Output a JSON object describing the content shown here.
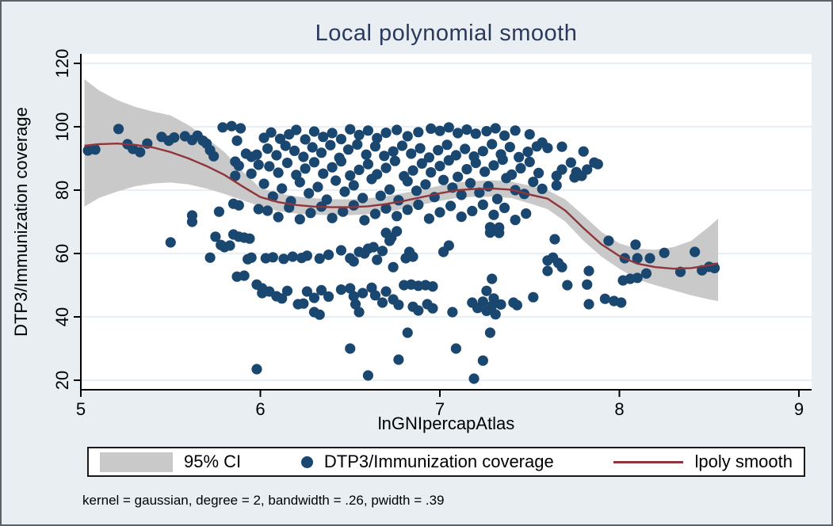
{
  "figure": {
    "background": "#e8eef1",
    "border_color": "#5b6166"
  },
  "chart_data": {
    "type": "scatter",
    "title": "Local polynomial smooth",
    "xlabel": "lnGNIpercapAtlas",
    "ylabel": "DTP3/Immunization coverage",
    "note": "kernel = gaussian, degree = 2, bandwidth = .26, pwidth = .39",
    "x_ticks": [
      5,
      6,
      7,
      8,
      9
    ],
    "y_ticks": [
      20,
      40,
      60,
      80,
      100,
      120
    ],
    "xlim": [
      5.0,
      9.07
    ],
    "ylim": [
      17,
      123
    ],
    "grid": "horizontal",
    "colors": {
      "scatter": "#1a476f",
      "line": "#90353b",
      "ci_band": "#c9c9c9",
      "gridline": "#dfeaf2",
      "axis": "#000000",
      "plot_background": "#ffffff"
    },
    "legend": {
      "position": "bottom",
      "items": [
        {
          "label": "95% CI",
          "type": "area",
          "color": "#c9c9c9"
        },
        {
          "label": "DTP3/Immunization coverage",
          "type": "marker",
          "color": "#1a476f"
        },
        {
          "label": "lpoly smooth",
          "type": "line",
          "color": "#90353b"
        }
      ]
    },
    "band": {
      "x": [
        5.02,
        5.1,
        5.2,
        5.3,
        5.4,
        5.5,
        5.6,
        5.7,
        5.8,
        5.9,
        6.0,
        6.1,
        6.2,
        6.3,
        6.4,
        6.5,
        6.6,
        6.7,
        6.8,
        6.9,
        7.0,
        7.1,
        7.2,
        7.3,
        7.4,
        7.5,
        7.6,
        7.7,
        7.8,
        7.9,
        8.0,
        8.1,
        8.2,
        8.3,
        8.4,
        8.5,
        8.55
      ],
      "upper": [
        115,
        111.5,
        108.5,
        106.3,
        104.8,
        103.6,
        100.5,
        96.5,
        92.0,
        86.0,
        80.6,
        79.0,
        78.0,
        77.4,
        77.1,
        77.1,
        77.4,
        78.1,
        79.1,
        80.2,
        81.4,
        82.4,
        82.9,
        83.1,
        82.7,
        81.4,
        80.0,
        77.0,
        72.0,
        66.8,
        63.2,
        61.5,
        61.2,
        62.0,
        64.0,
        68.5,
        71.0
      ],
      "lower": [
        74.8,
        77.5,
        79.5,
        81.2,
        82.1,
        82.4,
        81.8,
        80.5,
        78.8,
        76.8,
        74.9,
        73.4,
        72.6,
        72.2,
        72.1,
        72.1,
        72.4,
        73.1,
        74.1,
        75.4,
        76.6,
        77.6,
        77.9,
        77.9,
        77.5,
        75.8,
        74.0,
        70.0,
        64.0,
        59.0,
        55.2,
        51.8,
        50.0,
        48.4,
        46.8,
        45.5,
        45.0
      ]
    },
    "line": {
      "x": [
        5.02,
        5.1,
        5.2,
        5.3,
        5.4,
        5.5,
        5.6,
        5.7,
        5.8,
        5.9,
        6.0,
        6.1,
        6.2,
        6.3,
        6.4,
        6.5,
        6.6,
        6.7,
        6.8,
        6.9,
        7.0,
        7.1,
        7.2,
        7.3,
        7.4,
        7.5,
        7.6,
        7.7,
        7.8,
        7.9,
        8.0,
        8.1,
        8.2,
        8.3,
        8.4,
        8.5,
        8.55
      ],
      "y": [
        94.0,
        94.5,
        94.7,
        94.3,
        93.5,
        92.0,
        90.0,
        87.6,
        84.8,
        81.2,
        77.8,
        76.2,
        75.3,
        74.8,
        74.6,
        74.6,
        74.9,
        75.6,
        76.6,
        77.8,
        79.0,
        80.0,
        80.4,
        80.5,
        80.1,
        78.6,
        77.3,
        73.5,
        68.0,
        62.9,
        59.2,
        56.8,
        55.7,
        55.2,
        55.4,
        56.3,
        56.9
      ]
    },
    "points": [
      [
        5.21,
        99.3
      ],
      [
        5.45,
        96.8
      ],
      [
        5.49,
        95.6
      ],
      [
        5.52,
        96.6
      ],
      [
        5.58,
        97.0
      ],
      [
        5.62,
        95.8
      ],
      [
        5.65,
        97.2
      ],
      [
        5.68,
        95.6
      ],
      [
        5.79,
        99.8
      ],
      [
        5.84,
        100.2
      ],
      [
        5.89,
        99.5
      ],
      [
        6.02,
        96.5
      ],
      [
        6.06,
        98.2
      ],
      [
        6.11,
        96.2
      ],
      [
        6.16,
        97.6
      ],
      [
        6.2,
        99.0
      ],
      [
        6.25,
        96.0
      ],
      [
        6.3,
        98.5
      ],
      [
        6.35,
        96.8
      ],
      [
        6.4,
        98.0
      ],
      [
        6.45,
        96.1
      ],
      [
        6.5,
        99.2
      ],
      [
        6.55,
        97.4
      ],
      [
        6.6,
        98.8
      ],
      [
        6.65,
        96.4
      ],
      [
        6.7,
        98.1
      ],
      [
        6.76,
        99.0
      ],
      [
        6.82,
        97.0
      ],
      [
        6.88,
        98.3
      ],
      [
        6.95,
        99.4
      ],
      [
        7.0,
        98.7
      ],
      [
        7.05,
        99.8
      ],
      [
        7.1,
        98.0
      ],
      [
        7.15,
        99.1
      ],
      [
        7.2,
        97.8
      ],
      [
        7.26,
        98.6
      ],
      [
        7.31,
        99.5
      ],
      [
        7.36,
        97.2
      ],
      [
        7.42,
        98.8
      ],
      [
        7.5,
        97.6
      ],
      [
        7.57,
        95.0
      ],
      [
        5.04,
        92.5
      ],
      [
        5.08,
        92.8
      ],
      [
        5.26,
        94.5
      ],
      [
        5.29,
        93.0
      ],
      [
        5.33,
        92.0
      ],
      [
        5.37,
        94.7
      ],
      [
        5.7,
        94.7
      ],
      [
        5.72,
        92.6
      ],
      [
        5.74,
        90.7
      ],
      [
        5.87,
        95.6
      ],
      [
        5.92,
        91.5
      ],
      [
        5.95,
        90.5
      ],
      [
        5.98,
        91.2
      ],
      [
        6.04,
        93.1
      ],
      [
        6.09,
        91.0
      ],
      [
        6.14,
        94.0
      ],
      [
        6.19,
        92.4
      ],
      [
        6.24,
        90.5
      ],
      [
        6.29,
        93.5
      ],
      [
        6.34,
        91.8
      ],
      [
        6.39,
        94.2
      ],
      [
        6.44,
        90.2
      ],
      [
        6.49,
        92.8
      ],
      [
        6.54,
        94.4
      ],
      [
        6.59,
        91.2
      ],
      [
        6.64,
        93.8
      ],
      [
        6.69,
        90.8
      ],
      [
        6.74,
        92.2
      ],
      [
        6.79,
        94.0
      ],
      [
        6.84,
        91.5
      ],
      [
        6.89,
        93.2
      ],
      [
        6.94,
        90.3
      ],
      [
        6.99,
        92.6
      ],
      [
        7.04,
        94.3
      ],
      [
        7.09,
        91.0
      ],
      [
        7.14,
        93.0
      ],
      [
        7.19,
        90.6
      ],
      [
        7.24,
        92.3
      ],
      [
        7.29,
        94.5
      ],
      [
        7.34,
        91.3
      ],
      [
        7.39,
        93.6
      ],
      [
        7.44,
        90.4
      ],
      [
        7.49,
        92.1
      ],
      [
        7.54,
        93.8
      ],
      [
        7.6,
        93.3
      ],
      [
        7.68,
        93.7
      ],
      [
        7.8,
        92.2
      ],
      [
        5.86,
        89.0
      ],
      [
        5.88,
        87.7
      ],
      [
        5.86,
        84.5
      ],
      [
        5.95,
        85.2
      ],
      [
        5.99,
        88.0
      ],
      [
        6.05,
        87.5
      ],
      [
        6.1,
        85.5
      ],
      [
        6.15,
        88.6
      ],
      [
        6.2,
        84.8
      ],
      [
        6.25,
        86.8
      ],
      [
        6.3,
        88.8
      ],
      [
        6.35,
        85.2
      ],
      [
        6.4,
        87.2
      ],
      [
        6.45,
        89.1
      ],
      [
        6.5,
        84.6
      ],
      [
        6.55,
        86.4
      ],
      [
        6.6,
        88.2
      ],
      [
        6.65,
        85.0
      ],
      [
        6.7,
        87.0
      ],
      [
        6.75,
        89.2
      ],
      [
        6.8,
        84.4
      ],
      [
        6.85,
        86.2
      ],
      [
        6.9,
        88.4
      ],
      [
        6.95,
        85.6
      ],
      [
        7.0,
        87.6
      ],
      [
        7.05,
        89.4
      ],
      [
        7.1,
        84.2
      ],
      [
        7.15,
        86.6
      ],
      [
        7.2,
        88.6
      ],
      [
        7.25,
        85.8
      ],
      [
        7.3,
        87.8
      ],
      [
        7.35,
        89.6
      ],
      [
        7.4,
        84.9
      ],
      [
        7.45,
        86.9
      ],
      [
        7.5,
        88.9
      ],
      [
        7.55,
        85.4
      ],
      [
        7.73,
        88.7
      ],
      [
        7.86,
        88.7
      ],
      [
        7.88,
        88.2
      ],
      [
        7.68,
        86.5
      ],
      [
        7.76,
        85.7
      ],
      [
        7.82,
        86.5
      ],
      [
        7.79,
        84.5
      ],
      [
        7.75,
        84.0
      ],
      [
        7.65,
        84.5
      ],
      [
        7.65,
        81.5
      ],
      [
        6.02,
        82.0
      ],
      [
        6.07,
        78.0
      ],
      [
        6.12,
        80.5
      ],
      [
        6.17,
        76.5
      ],
      [
        6.22,
        82.5
      ],
      [
        6.27,
        79.0
      ],
      [
        6.32,
        81.0
      ],
      [
        6.37,
        77.0
      ],
      [
        6.42,
        83.0
      ],
      [
        6.47,
        79.5
      ],
      [
        6.52,
        81.5
      ],
      [
        6.57,
        77.5
      ],
      [
        6.62,
        83.5
      ],
      [
        6.67,
        78.2
      ],
      [
        6.72,
        80.2
      ],
      [
        6.77,
        76.8
      ],
      [
        6.82,
        82.8
      ],
      [
        6.87,
        79.8
      ],
      [
        6.92,
        81.8
      ],
      [
        6.97,
        77.8
      ],
      [
        7.02,
        83.2
      ],
      [
        7.07,
        80.8
      ],
      [
        7.12,
        78.5
      ],
      [
        7.17,
        82.2
      ],
      [
        7.22,
        79.2
      ],
      [
        7.27,
        81.2
      ],
      [
        7.32,
        77.2
      ],
      [
        7.37,
        83.8
      ],
      [
        7.42,
        80.0
      ],
      [
        7.47,
        78.8
      ],
      [
        7.52,
        82.6
      ],
      [
        7.57,
        80.4
      ],
      [
        5.62,
        72.0
      ],
      [
        5.77,
        73.2
      ],
      [
        5.85,
        75.7
      ],
      [
        5.88,
        75.2
      ],
      [
        5.99,
        74.0
      ],
      [
        6.04,
        73.5
      ],
      [
        6.1,
        71.5
      ],
      [
        6.16,
        74.5
      ],
      [
        6.22,
        70.8
      ],
      [
        6.28,
        72.8
      ],
      [
        6.34,
        74.8
      ],
      [
        6.4,
        71.2
      ],
      [
        6.46,
        73.2
      ],
      [
        6.52,
        75.2
      ],
      [
        6.58,
        70.5
      ],
      [
        6.64,
        72.5
      ],
      [
        6.7,
        74.2
      ],
      [
        6.76,
        71.8
      ],
      [
        6.82,
        73.8
      ],
      [
        6.88,
        75.4
      ],
      [
        6.94,
        71.0
      ],
      [
        7.0,
        73.0
      ],
      [
        7.06,
        75.0
      ],
      [
        7.12,
        71.6
      ],
      [
        7.18,
        73.4
      ],
      [
        7.24,
        75.4
      ],
      [
        7.3,
        72.2
      ],
      [
        7.36,
        74.4
      ],
      [
        7.42,
        70.6
      ],
      [
        7.48,
        72.6
      ],
      [
        7.28,
        68.3
      ],
      [
        7.33,
        68.2
      ],
      [
        7.28,
        66.6
      ],
      [
        7.33,
        66.5
      ],
      [
        7.64,
        64.5
      ],
      [
        7.05,
        62.5
      ],
      [
        6.7,
        66.5
      ],
      [
        6.73,
        65.0
      ],
      [
        6.76,
        67.0
      ],
      [
        6.72,
        64.0
      ],
      [
        5.85,
        66.0
      ],
      [
        5.88,
        65.3
      ],
      [
        5.91,
        65.0
      ],
      [
        5.94,
        64.7
      ],
      [
        5.75,
        65.3
      ],
      [
        5.5,
        63.5
      ],
      [
        5.62,
        70.0
      ],
      [
        5.72,
        58.7
      ],
      [
        5.78,
        62.7
      ],
      [
        5.8,
        62.0
      ],
      [
        5.83,
        62.5
      ],
      [
        5.93,
        58.2
      ],
      [
        5.95,
        58.7
      ],
      [
        6.03,
        58.5
      ],
      [
        6.07,
        58.8
      ],
      [
        6.13,
        58.3
      ],
      [
        6.18,
        59.0
      ],
      [
        6.23,
        58.6
      ],
      [
        6.26,
        59.3
      ],
      [
        6.33,
        58.4
      ],
      [
        6.38,
        59.6
      ],
      [
        6.45,
        61.0
      ],
      [
        6.5,
        58.5
      ],
      [
        6.52,
        57.5
      ],
      [
        6.55,
        60.5
      ],
      [
        6.58,
        60.0
      ],
      [
        6.6,
        61.5
      ],
      [
        6.63,
        62.0
      ],
      [
        6.65,
        58.0
      ],
      [
        6.68,
        60.8
      ],
      [
        6.74,
        55.7
      ],
      [
        6.81,
        58.5
      ],
      [
        6.83,
        60.5
      ],
      [
        6.85,
        59.0
      ],
      [
        7.02,
        60.5
      ],
      [
        7.6,
        57.8
      ],
      [
        7.63,
        58.7
      ],
      [
        7.66,
        57.0
      ],
      [
        7.68,
        55.7
      ],
      [
        7.6,
        54.5
      ],
      [
        7.83,
        54.5
      ],
      [
        7.94,
        64.0
      ],
      [
        8.09,
        62.8
      ],
      [
        8.25,
        60.2
      ],
      [
        8.42,
        60.5
      ],
      [
        8.03,
        58.5
      ],
      [
        8.1,
        58.5
      ],
      [
        8.17,
        58.5
      ],
      [
        8.34,
        54.2
      ],
      [
        8.46,
        54.7
      ],
      [
        8.5,
        55.8
      ],
      [
        8.53,
        55.4
      ],
      [
        8.02,
        51.5
      ],
      [
        8.06,
        52.0
      ],
      [
        8.1,
        52.3
      ],
      [
        8.15,
        53.7
      ],
      [
        5.87,
        52.7
      ],
      [
        5.91,
        53.0
      ],
      [
        5.98,
        50.2
      ],
      [
        6.01,
        49.0
      ],
      [
        6.01,
        47.5
      ],
      [
        6.05,
        48.0
      ],
      [
        6.09,
        46.5
      ],
      [
        6.12,
        45.8
      ],
      [
        6.15,
        48.2
      ],
      [
        6.26,
        48.0
      ],
      [
        6.3,
        46.0
      ],
      [
        6.34,
        48.4
      ],
      [
        6.38,
        46.4
      ],
      [
        6.45,
        48.6
      ],
      [
        6.21,
        44.0
      ],
      [
        6.24,
        44.2
      ],
      [
        6.3,
        41.5
      ],
      [
        6.33,
        40.7
      ],
      [
        6.5,
        49.0
      ],
      [
        6.52,
        46.5
      ],
      [
        6.53,
        44.0
      ],
      [
        6.55,
        41.5
      ],
      [
        6.57,
        47.5
      ],
      [
        6.62,
        49.2
      ],
      [
        6.64,
        46.8
      ],
      [
        6.68,
        44.5
      ],
      [
        6.7,
        48.0
      ],
      [
        6.74,
        45.5
      ],
      [
        6.77,
        43.8
      ],
      [
        6.8,
        50.0
      ],
      [
        6.84,
        50.2
      ],
      [
        6.88,
        49.8
      ],
      [
        6.92,
        50.0
      ],
      [
        6.96,
        49.6
      ],
      [
        6.93,
        44.0
      ],
      [
        6.96,
        42.7
      ],
      [
        6.85,
        43.2
      ],
      [
        6.88,
        42.0
      ],
      [
        7.07,
        41.5
      ],
      [
        7.18,
        44.5
      ],
      [
        7.21,
        42.8
      ],
      [
        7.24,
        44.8
      ],
      [
        7.26,
        41.9
      ],
      [
        7.29,
        43.5
      ],
      [
        7.31,
        40.8
      ],
      [
        7.34,
        43.9
      ],
      [
        7.3,
        45.8
      ],
      [
        7.26,
        48.2
      ],
      [
        7.29,
        52.0
      ],
      [
        7.41,
        44.5
      ],
      [
        7.43,
        43.7
      ],
      [
        7.52,
        46.2
      ],
      [
        7.71,
        50.0
      ],
      [
        7.82,
        50.2
      ],
      [
        7.83,
        44.0
      ],
      [
        7.92,
        45.7
      ],
      [
        7.97,
        45.0
      ],
      [
        8.01,
        44.5
      ],
      [
        6.82,
        35.0
      ],
      [
        6.5,
        30.0
      ],
      [
        6.77,
        26.5
      ],
      [
        6.6,
        21.5
      ],
      [
        5.98,
        23.5
      ],
      [
        7.28,
        35.0
      ],
      [
        7.09,
        30.0
      ],
      [
        7.24,
        26.2
      ],
      [
        7.19,
        20.5
      ]
    ]
  }
}
